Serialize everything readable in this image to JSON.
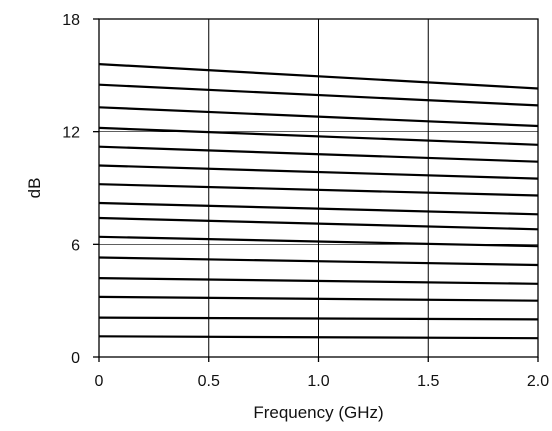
{
  "chart_data": {
    "type": "line",
    "title": "",
    "xlabel": "Frequency (GHz)",
    "ylabel": "dB",
    "xlim": [
      0,
      2.0
    ],
    "ylim": [
      0,
      18
    ],
    "x_ticks": [
      "0",
      "0.5",
      "1.0",
      "1.5",
      "2.0"
    ],
    "y_ticks": [
      "0",
      "6",
      "12",
      "18"
    ],
    "x_tick_values": [
      0,
      0.5,
      1.0,
      1.5,
      2.0
    ],
    "y_tick_values": [
      0,
      6,
      12,
      18
    ],
    "grid": true,
    "legend": "none",
    "series": [
      {
        "x": [
          0,
          2.0
        ],
        "y": [
          15.6,
          14.3
        ]
      },
      {
        "x": [
          0,
          2.0
        ],
        "y": [
          14.5,
          13.4
        ]
      },
      {
        "x": [
          0,
          2.0
        ],
        "y": [
          13.3,
          12.3
        ]
      },
      {
        "x": [
          0,
          2.0
        ],
        "y": [
          12.2,
          11.3
        ]
      },
      {
        "x": [
          0,
          2.0
        ],
        "y": [
          11.2,
          10.4
        ]
      },
      {
        "x": [
          0,
          2.0
        ],
        "y": [
          10.2,
          9.5
        ]
      },
      {
        "x": [
          0,
          2.0
        ],
        "y": [
          9.2,
          8.6
        ]
      },
      {
        "x": [
          0,
          2.0
        ],
        "y": [
          8.2,
          7.6
        ]
      },
      {
        "x": [
          0,
          2.0
        ],
        "y": [
          7.4,
          6.8
        ]
      },
      {
        "x": [
          0,
          2.0
        ],
        "y": [
          6.4,
          5.9
        ]
      },
      {
        "x": [
          0,
          2.0
        ],
        "y": [
          5.3,
          4.9
        ]
      },
      {
        "x": [
          0,
          2.0
        ],
        "y": [
          4.2,
          3.9
        ]
      },
      {
        "x": [
          0,
          2.0
        ],
        "y": [
          3.2,
          3.0
        ]
      },
      {
        "x": [
          0,
          2.0
        ],
        "y": [
          2.1,
          2.0
        ]
      },
      {
        "x": [
          0,
          2.0
        ],
        "y": [
          1.1,
          1.0
        ]
      }
    ],
    "colors": {
      "series": "#000000",
      "grid": "#000000",
      "axis": "#000000",
      "text": "#111111"
    }
  }
}
